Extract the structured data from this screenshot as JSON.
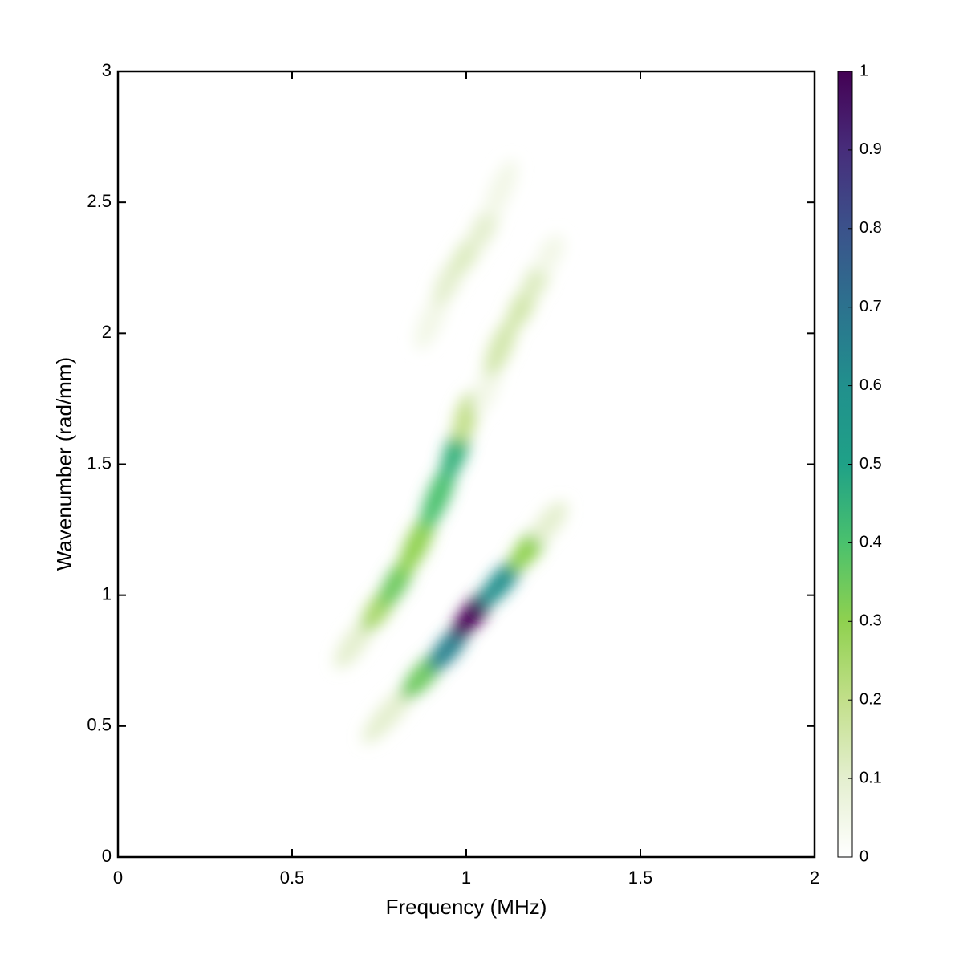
{
  "chart_data": {
    "type": "heatmap",
    "xlabel": "Frequency (MHz)",
    "ylabel": "Wavenumber (rad/mm)",
    "xlim": [
      0,
      2
    ],
    "xticks": [
      0,
      0.5,
      1,
      1.5,
      2
    ],
    "ylim": [
      0,
      3
    ],
    "yticks": [
      0,
      0.5,
      1,
      1.5,
      2,
      2.5,
      3
    ],
    "clim": [
      0,
      1
    ],
    "cticks": [
      0,
      0.1,
      0.2,
      0.3,
      0.4,
      0.5,
      0.6,
      0.7,
      0.8,
      0.9,
      1
    ],
    "colormap": [
      [
        0,
        "#ffffff"
      ],
      [
        0.1,
        "#e4efcf"
      ],
      [
        0.2,
        "#c2df8a"
      ],
      [
        0.3,
        "#8fd14f"
      ],
      [
        0.4,
        "#4ac16d"
      ],
      [
        0.5,
        "#1fa187"
      ],
      [
        0.6,
        "#21908d"
      ],
      [
        0.7,
        "#2c728e"
      ],
      [
        0.8,
        "#3b528b"
      ],
      [
        0.9,
        "#472d7b"
      ],
      [
        1,
        "#440154"
      ]
    ],
    "ridges": [
      {
        "x": [
          0.78,
          0.88,
          0.95,
          1.02,
          1.1,
          1.18,
          1.24
        ],
        "y": [
          0.55,
          0.7,
          0.8,
          0.93,
          1.05,
          1.18,
          1.28
        ],
        "values": [
          0.1,
          0.35,
          0.65,
          1.0,
          0.6,
          0.3,
          0.1
        ]
      },
      {
        "x": [
          0.68,
          0.75,
          0.8,
          0.86,
          0.92,
          0.97,
          1.0
        ],
        "y": [
          0.82,
          0.95,
          1.05,
          1.2,
          1.38,
          1.55,
          1.68
        ],
        "values": [
          0.1,
          0.25,
          0.35,
          0.3,
          0.4,
          0.45,
          0.2
        ]
      },
      {
        "x": [
          1.06,
          1.1,
          1.16,
          1.2,
          1.24
        ],
        "y": [
          1.8,
          1.95,
          2.1,
          2.2,
          2.3
        ],
        "values": [
          0.05,
          0.15,
          0.15,
          0.12,
          0.05
        ]
      },
      {
        "x": [
          0.9,
          0.95,
          1.0,
          1.05,
          1.1
        ],
        "y": [
          2.05,
          2.2,
          2.3,
          2.4,
          2.55
        ],
        "values": [
          0.05,
          0.1,
          0.12,
          0.1,
          0.05
        ]
      }
    ]
  }
}
